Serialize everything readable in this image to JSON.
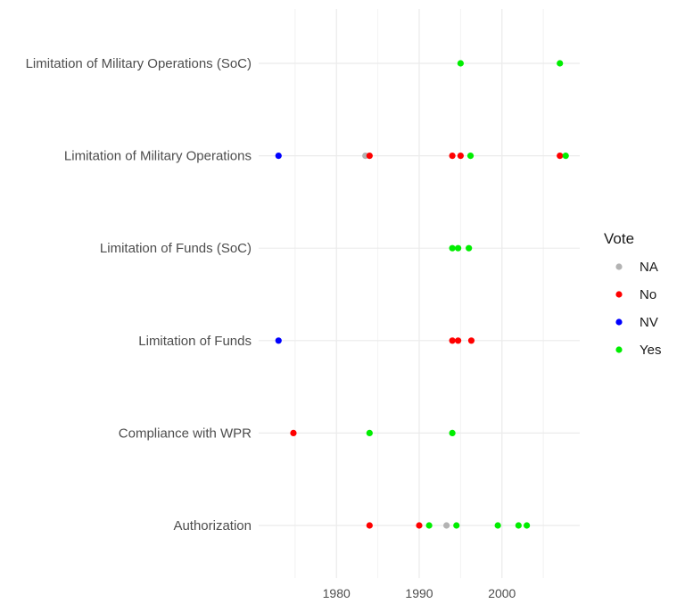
{
  "chart_data": {
    "type": "scatter",
    "title": "",
    "xlabel": "",
    "ylabel": "",
    "xlim": [
      1970.6,
      2009.4
    ],
    "x_ticks": [
      1980,
      1990,
      2000
    ],
    "categories": [
      "Authorization",
      "Compliance with WPR",
      "Limitation of Funds",
      "Limitation of Funds (SoC)",
      "Limitation of Military Operations",
      "Limitation of Military Operations (SoC)"
    ],
    "grid": true,
    "legend": {
      "title": "Vote",
      "position": "right",
      "entries": [
        {
          "label": "NA",
          "color": "#b3b3b3"
        },
        {
          "label": "No",
          "color": "#ff0000"
        },
        {
          "label": "NV",
          "color": "#0000ff"
        },
        {
          "label": "Yes",
          "color": "#00ee00"
        }
      ]
    },
    "points": [
      {
        "category": "Limitation of Military Operations (SoC)",
        "x": 1995.0,
        "vote": "Yes"
      },
      {
        "category": "Limitation of Military Operations (SoC)",
        "x": 2007.0,
        "vote": "Yes"
      },
      {
        "category": "Limitation of Military Operations",
        "x": 1973.0,
        "vote": "NV"
      },
      {
        "category": "Limitation of Military Operations",
        "x": 1983.5,
        "vote": "NA"
      },
      {
        "category": "Limitation of Military Operations",
        "x": 1984.0,
        "vote": "No"
      },
      {
        "category": "Limitation of Military Operations",
        "x": 1994.0,
        "vote": "No"
      },
      {
        "category": "Limitation of Military Operations",
        "x": 1995.0,
        "vote": "No"
      },
      {
        "category": "Limitation of Military Operations",
        "x": 1996.2,
        "vote": "Yes"
      },
      {
        "category": "Limitation of Military Operations",
        "x": 2007.0,
        "vote": "No"
      },
      {
        "category": "Limitation of Military Operations",
        "x": 2007.7,
        "vote": "Yes"
      },
      {
        "category": "Limitation of Funds (SoC)",
        "x": 1994.0,
        "vote": "Yes"
      },
      {
        "category": "Limitation of Funds (SoC)",
        "x": 1994.7,
        "vote": "Yes"
      },
      {
        "category": "Limitation of Funds (SoC)",
        "x": 1996.0,
        "vote": "Yes"
      },
      {
        "category": "Limitation of Funds",
        "x": 1973.0,
        "vote": "NV"
      },
      {
        "category": "Limitation of Funds",
        "x": 1994.0,
        "vote": "No"
      },
      {
        "category": "Limitation of Funds",
        "x": 1994.7,
        "vote": "No"
      },
      {
        "category": "Limitation of Funds",
        "x": 1996.3,
        "vote": "No"
      },
      {
        "category": "Compliance with WPR",
        "x": 1974.8,
        "vote": "No"
      },
      {
        "category": "Compliance with WPR",
        "x": 1984.0,
        "vote": "Yes"
      },
      {
        "category": "Compliance with WPR",
        "x": 1994.0,
        "vote": "Yes"
      },
      {
        "category": "Authorization",
        "x": 1984.0,
        "vote": "No"
      },
      {
        "category": "Authorization",
        "x": 1990.0,
        "vote": "No"
      },
      {
        "category": "Authorization",
        "x": 1991.2,
        "vote": "Yes"
      },
      {
        "category": "Authorization",
        "x": 1993.3,
        "vote": "NA"
      },
      {
        "category": "Authorization",
        "x": 1994.5,
        "vote": "Yes"
      },
      {
        "category": "Authorization",
        "x": 1999.5,
        "vote": "Yes"
      },
      {
        "category": "Authorization",
        "x": 2002.0,
        "vote": "Yes"
      },
      {
        "category": "Authorization",
        "x": 2003.0,
        "vote": "Yes"
      }
    ]
  }
}
